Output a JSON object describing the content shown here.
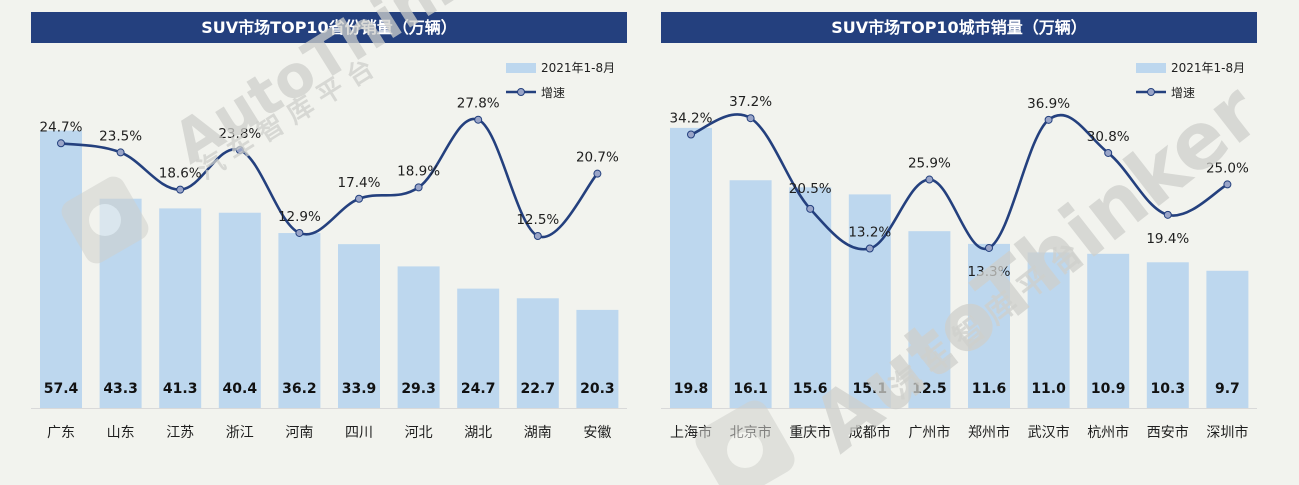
{
  "watermark": {
    "brand": "AutoThinker",
    "cn": "汽 车 智 库 平 台"
  },
  "colors": {
    "title_bg": "#24407e",
    "bar": "#bdd7ee",
    "line": "#24407e",
    "marker_fill": "#9aa5c8",
    "text": "#1f1f1f"
  },
  "chart_data": [
    {
      "type": "bar+line",
      "title": "SUV市场TOP10省份销量（万辆）",
      "categories": [
        "广东",
        "山东",
        "江苏",
        "浙江",
        "河南",
        "四川",
        "河北",
        "湖北",
        "湖南",
        "安徽"
      ],
      "series": [
        {
          "name": "2021年1-8月",
          "type": "bar",
          "values": [
            57.4,
            43.3,
            41.3,
            40.4,
            36.2,
            33.9,
            29.3,
            24.7,
            22.7,
            20.3
          ],
          "labels": [
            "57.4",
            "43.3",
            "41.3",
            "40.4",
            "36.2",
            "33.9",
            "29.3",
            "24.7",
            "22.7",
            "20.3"
          ]
        },
        {
          "name": "增速",
          "type": "line",
          "values": [
            24.7,
            23.5,
            18.6,
            23.8,
            12.9,
            17.4,
            18.9,
            27.8,
            12.5,
            20.7
          ],
          "labels": [
            "24.7%",
            "23.5%",
            "18.6%",
            "23.8%",
            "12.9%",
            "17.4%",
            "18.9%",
            "27.8%",
            "12.5%",
            "20.7%"
          ]
        }
      ],
      "bar_ylim": [
        0,
        60
      ],
      "line_ylim": [
        5,
        30
      ],
      "legend": [
        "2021年1-8月",
        "增速"
      ],
      "legend_position": "top-right"
    },
    {
      "type": "bar+line",
      "title": "SUV市场TOP10城市销量（万辆）",
      "categories": [
        "上海市",
        "北京市",
        "重庆市",
        "成都市",
        "广州市",
        "郑州市",
        "武汉市",
        "杭州市",
        "西安市",
        "深圳市"
      ],
      "series": [
        {
          "name": "2021年1-8月",
          "type": "bar",
          "values": [
            19.8,
            16.1,
            15.6,
            15.1,
            12.5,
            11.6,
            11.0,
            10.9,
            10.3,
            9.7
          ],
          "labels": [
            "19.8",
            "16.1",
            "15.6",
            "15.1",
            "12.5",
            "11.6",
            "11.0",
            "10.9",
            "10.3",
            "9.7"
          ]
        },
        {
          "name": "增速",
          "type": "line",
          "values": [
            34.2,
            37.2,
            20.5,
            13.2,
            25.9,
            13.3,
            36.9,
            30.8,
            19.4,
            25.0
          ],
          "labels": [
            "34.2%",
            "37.2%",
            "20.5%",
            "13.2%",
            "25.9%",
            "13.3%",
            "36.9%",
            "30.8%",
            "19.4%",
            "25.0%"
          ]
        }
      ],
      "bar_ylim": [
        0,
        20.5
      ],
      "line_ylim": [
        5,
        40
      ],
      "legend": [
        "2021年1-8月",
        "增速"
      ],
      "legend_position": "top-right"
    }
  ]
}
